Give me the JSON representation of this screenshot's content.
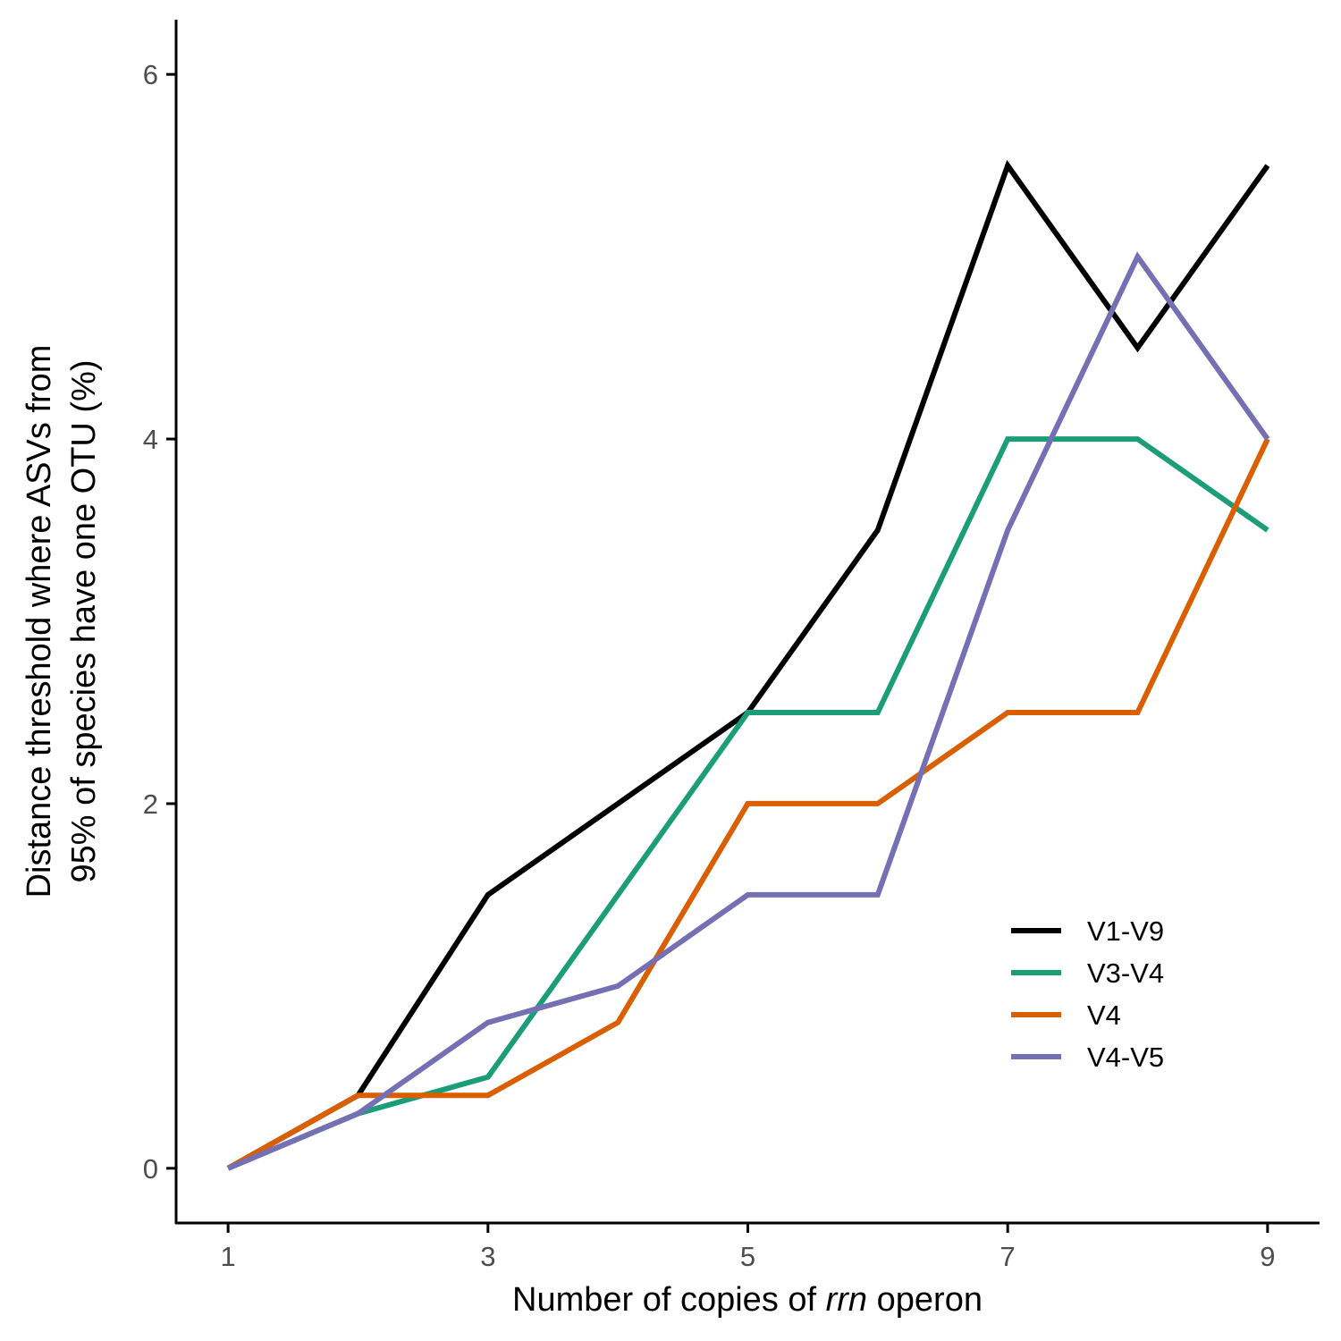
{
  "chart_data": {
    "type": "line",
    "x": [
      1,
      2,
      3,
      4,
      5,
      6,
      7,
      8,
      9
    ],
    "xticks": [
      1,
      3,
      5,
      7,
      9
    ],
    "yticks": [
      0,
      2,
      4,
      6
    ],
    "xlim": [
      0.6,
      9.4
    ],
    "ylim": [
      -0.3,
      6.3
    ],
    "xlabel_prefix": "Number of copies of ",
    "xlabel_italic": "rrn",
    "xlabel_suffix": " operon",
    "ylabel_line1": "Distance threshold where ASVs from",
    "ylabel_line2": "95% of species have one OTU (%)",
    "legend_position": "bottom-right",
    "grid": false,
    "series": [
      {
        "name": "V1-V9",
        "color": "#000000",
        "values": [
          0,
          0.4,
          1.5,
          2.0,
          2.5,
          3.5,
          5.5,
          4.5,
          5.5
        ]
      },
      {
        "name": "V3-V4",
        "color": "#1b9e77",
        "values": [
          0,
          0.3,
          0.5,
          1.5,
          2.5,
          2.5,
          4.0,
          4.0,
          3.5
        ]
      },
      {
        "name": "V4",
        "color": "#d95f02",
        "values": [
          0,
          0.4,
          0.4,
          0.8,
          2.0,
          2.0,
          2.5,
          2.5,
          4.0
        ]
      },
      {
        "name": "V4-V5",
        "color": "#7570b3",
        "values": [
          0,
          0.3,
          0.8,
          1.0,
          1.5,
          1.5,
          3.5,
          5.0,
          4.0
        ]
      }
    ]
  }
}
